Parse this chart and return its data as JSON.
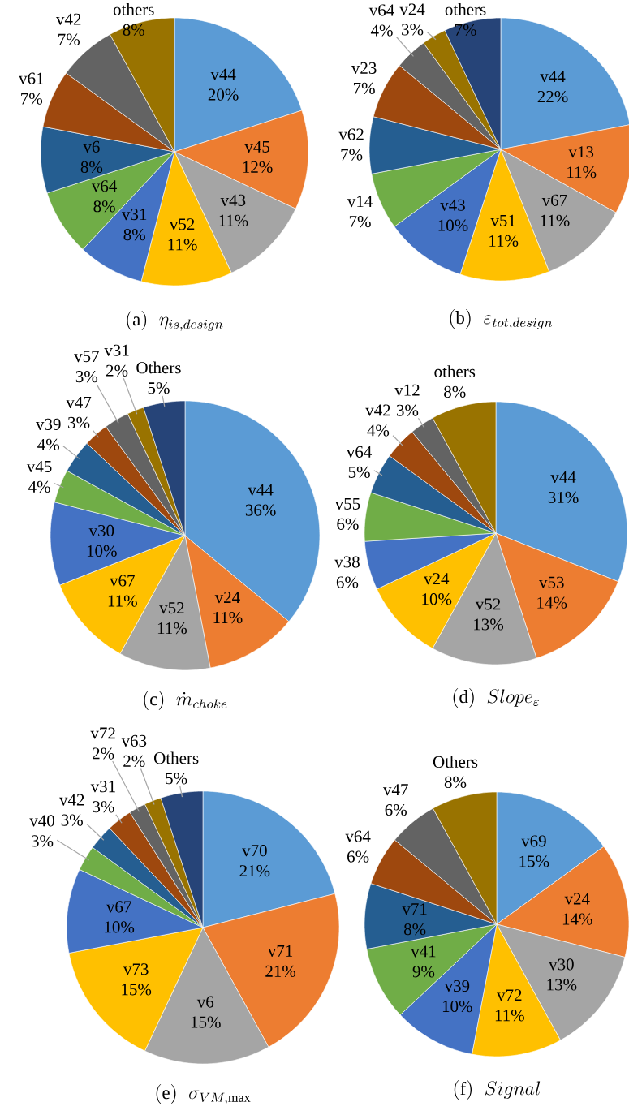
{
  "chart_data": [
    {
      "type": "pie",
      "title": "(\\mathrm{a})\\;\\;\\eta_{is,design}",
      "categories": [
        "v44",
        "v45",
        "v43",
        "v52",
        "v31",
        "v64",
        "v6",
        "v61",
        "v42",
        "others"
      ],
      "values": [
        20,
        12,
        11,
        11,
        8,
        8,
        8,
        7,
        7,
        8
      ],
      "value_labels": [
        "20%",
        "12%",
        "11%",
        "11%",
        "8%",
        "8%",
        "8%",
        "7%",
        "7%",
        "8%"
      ],
      "colors": [
        "#5b9bd5",
        "#ed7d31",
        "#a5a5a5",
        "#ffc000",
        "#4472c4",
        "#70ad47",
        "#255e91",
        "#9e480e",
        "#636363",
        "#997300"
      ]
    },
    {
      "type": "pie",
      "title": "(\\mathrm{b})\\;\\;\\varepsilon_{tot,design}",
      "categories": [
        "v44",
        "v13",
        "v67",
        "v51",
        "v43",
        "v14",
        "v62",
        "v23",
        "v64",
        "v24",
        "others"
      ],
      "values": [
        22,
        11,
        11,
        11,
        10,
        7,
        7,
        7,
        4,
        3,
        7
      ],
      "value_labels": [
        "22%",
        "11%",
        "11%",
        "11%",
        "10%",
        "7%",
        "7%",
        "7%",
        "4%",
        "3%",
        "7%"
      ],
      "colors": [
        "#5b9bd5",
        "#ed7d31",
        "#a5a5a5",
        "#ffc000",
        "#4472c4",
        "#70ad47",
        "#255e91",
        "#9e480e",
        "#636363",
        "#997300",
        "#264478"
      ]
    },
    {
      "type": "pie",
      "title": "(\\mathrm{c})\\;\\;\\dot{m}_{choke}",
      "categories": [
        "v44",
        "v24",
        "v52",
        "v67",
        "v30",
        "v45",
        "v39",
        "v47",
        "v57",
        "v31",
        "Others"
      ],
      "values": [
        36,
        11,
        11,
        11,
        10,
        4,
        4,
        3,
        3,
        2,
        5
      ],
      "value_labels": [
        "36%",
        "11%",
        "11%",
        "11%",
        "10%",
        "4%",
        "4%",
        "3%",
        "3%",
        "2%",
        "5%"
      ],
      "colors": [
        "#5b9bd5",
        "#ed7d31",
        "#a5a5a5",
        "#ffc000",
        "#4472c4",
        "#70ad47",
        "#255e91",
        "#9e480e",
        "#636363",
        "#997300",
        "#264478"
      ]
    },
    {
      "type": "pie",
      "title": "(\\mathrm{d})\\;\\;Slope_{\\varepsilon}",
      "categories": [
        "v44",
        "v53",
        "v52",
        "v24",
        "v38",
        "v55",
        "v64",
        "v42",
        "v12",
        "others"
      ],
      "values": [
        31,
        14,
        13,
        10,
        6,
        6,
        5,
        4,
        3,
        8
      ],
      "value_labels": [
        "31%",
        "14%",
        "13%",
        "10%",
        "6%",
        "6%",
        "5%",
        "4%",
        "3%",
        "8%"
      ],
      "colors": [
        "#5b9bd5",
        "#ed7d31",
        "#a5a5a5",
        "#ffc000",
        "#4472c4",
        "#70ad47",
        "#255e91",
        "#9e480e",
        "#636363",
        "#997300"
      ]
    },
    {
      "type": "pie",
      "title": "(\\mathrm{e})\\;\\;\\sigma_{VM,\\max}",
      "categories": [
        "v70",
        "v71",
        "v6",
        "v73",
        "v67",
        "v40",
        "v42",
        "v31",
        "v72",
        "v63",
        "Others"
      ],
      "values": [
        21,
        21,
        15,
        15,
        10,
        3,
        3,
        3,
        2,
        2,
        5
      ],
      "value_labels": [
        "21%",
        "21%",
        "15%",
        "15%",
        "10%",
        "3%",
        "3%",
        "3%",
        "2%",
        "2%",
        "5%"
      ],
      "colors": [
        "#5b9bd5",
        "#ed7d31",
        "#a5a5a5",
        "#ffc000",
        "#4472c4",
        "#70ad47",
        "#255e91",
        "#9e480e",
        "#636363",
        "#997300",
        "#264478"
      ]
    },
    {
      "type": "pie",
      "title": "(\\mathrm{f})\\;\\;Signal",
      "categories": [
        "v69",
        "v24",
        "v30",
        "v72",
        "v39",
        "v41",
        "v71",
        "v64",
        "v47",
        "Others"
      ],
      "values": [
        15,
        14,
        13,
        11,
        10,
        9,
        8,
        6,
        6,
        8
      ],
      "value_labels": [
        "15%",
        "14%",
        "13%",
        "11%",
        "10%",
        "9%",
        "8%",
        "6%",
        "6%",
        "8%"
      ],
      "colors": [
        "#5b9bd5",
        "#ed7d31",
        "#a5a5a5",
        "#ffc000",
        "#4472c4",
        "#70ad47",
        "#255e91",
        "#9e480e",
        "#636363",
        "#997300"
      ]
    }
  ]
}
